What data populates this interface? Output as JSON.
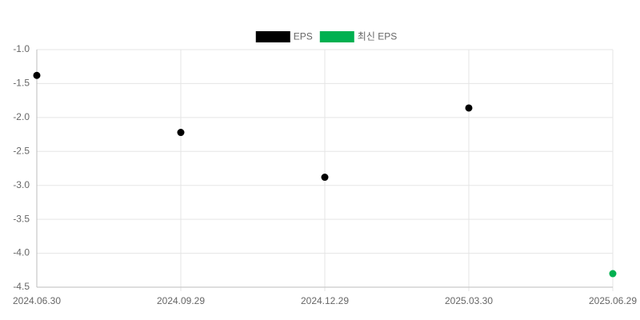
{
  "chart_data": {
    "type": "scatter",
    "categories": [
      "2024.06.30",
      "2024.09.29",
      "2024.12.29",
      "2025.03.30",
      "2025.06.29"
    ],
    "series": [
      {
        "name": "EPS",
        "color": "#000000",
        "values": [
          -1.38,
          -2.22,
          -2.88,
          -1.86,
          null
        ]
      },
      {
        "name": "최신 EPS",
        "color": "#00b050",
        "values": [
          null,
          null,
          null,
          null,
          -4.3
        ]
      }
    ],
    "ylim": [
      -4.5,
      -1.0
    ],
    "yticks": [
      {
        "value": -1.0,
        "label": "-1.0"
      },
      -1.5,
      {
        "value": -2.0,
        "label": "-2.0"
      },
      -2.5,
      {
        "value": -3.0,
        "label": "-3.0"
      },
      -3.5,
      {
        "value": -4.0,
        "label": "-4.0"
      },
      -4.5
    ],
    "grid": true,
    "legend": "top"
  }
}
